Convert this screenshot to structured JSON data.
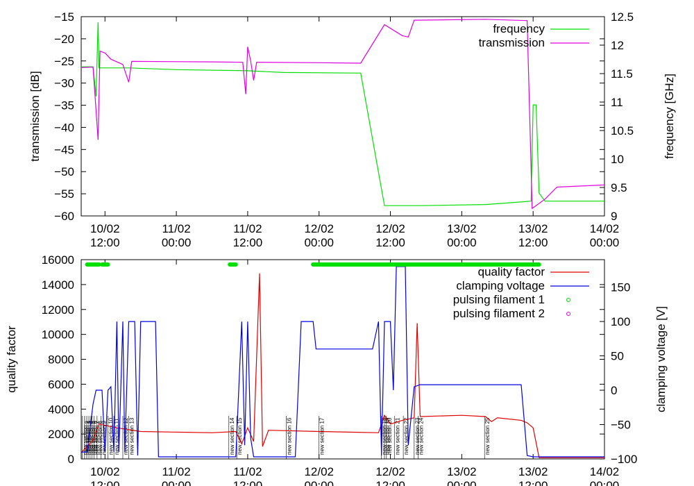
{
  "chart_data": [
    {
      "type": "line",
      "x_ticks": [
        {
          "date": "10/02",
          "time": "12:00"
        },
        {
          "date": "11/02",
          "time": "00:00"
        },
        {
          "date": "11/02",
          "time": "12:00"
        },
        {
          "date": "12/02",
          "time": "00:00"
        },
        {
          "date": "12/02",
          "time": "12:00"
        },
        {
          "date": "13/02",
          "time": "00:00"
        },
        {
          "date": "13/02",
          "time": "12:00"
        },
        {
          "date": "14/02",
          "time": "00:00"
        }
      ],
      "xlim": [
        "2013-02-10 08:00",
        "2013-02-14 00:00"
      ],
      "ylabel": "transmission [dB]",
      "ylim": [
        -60,
        -15
      ],
      "y_ticks": [
        -60,
        -55,
        -50,
        -45,
        -40,
        -35,
        -30,
        -25,
        -20,
        -15
      ],
      "y2label": "frequency [GHz]",
      "y2lim": [
        9,
        12.5
      ],
      "y2_ticks": [
        9,
        9.5,
        10,
        10.5,
        11,
        11.5,
        12,
        12.5
      ],
      "legend_position": "top-right",
      "colors": {
        "frequency": "#00e000",
        "transmission": "#e000e0"
      },
      "series": [
        {
          "name": "frequency",
          "axis": "right",
          "points": [
            [
              "2013-02-10 08:00",
              11.62
            ],
            [
              "2013-02-10 10:00",
              11.62
            ],
            [
              "2013-02-10 10:30",
              11.1
            ],
            [
              "2013-02-10 10:50",
              12.4
            ],
            [
              "2013-02-10 11:00",
              11.6
            ],
            [
              "2013-02-10 16:00",
              11.6
            ],
            [
              "2013-02-11 00:00",
              11.57
            ],
            [
              "2013-02-11 12:00",
              11.55
            ],
            [
              "2013-02-11 18:00",
              11.52
            ],
            [
              "2013-02-12 06:00",
              11.51
            ],
            [
              "2013-02-12 07:00",
              11.51
            ],
            [
              "2013-02-12 11:00",
              9.18
            ],
            [
              "2013-02-12 17:00",
              9.18
            ],
            [
              "2013-02-13 04:00",
              9.2
            ],
            [
              "2013-02-13 08:00",
              9.23
            ],
            [
              "2013-02-13 11:40",
              9.26
            ],
            [
              "2013-02-13 12:00",
              10.95
            ],
            [
              "2013-02-13 12:30",
              10.95
            ],
            [
              "2013-02-13 13:00",
              9.4
            ],
            [
              "2013-02-13 14:00",
              9.26
            ],
            [
              "2013-02-14 00:00",
              9.26
            ]
          ]
        },
        {
          "name": "transmission",
          "axis": "left",
          "points": [
            [
              "2013-02-10 08:00",
              -26.5
            ],
            [
              "2013-02-10 10:00",
              -26.4
            ],
            [
              "2013-02-10 10:50",
              -42.8
            ],
            [
              "2013-02-10 11:10",
              -22.8
            ],
            [
              "2013-02-10 12:00",
              -23.2
            ],
            [
              "2013-02-10 13:00",
              -24.6
            ],
            [
              "2013-02-10 15:00",
              -25.8
            ],
            [
              "2013-02-10 16:00",
              -29.8
            ],
            [
              "2013-02-10 16:30",
              -25.1
            ],
            [
              "2013-02-11 06:00",
              -25.2
            ],
            [
              "2013-02-11 11:10",
              -25.3
            ],
            [
              "2013-02-11 11:40",
              -32.5
            ],
            [
              "2013-02-11 12:00",
              -21.8
            ],
            [
              "2013-02-11 12:30",
              -25.0
            ],
            [
              "2013-02-11 13:00",
              -29.4
            ],
            [
              "2013-02-11 13:30",
              -25.3
            ],
            [
              "2013-02-12 00:00",
              -25.4
            ],
            [
              "2013-02-12 07:00",
              -25.5
            ],
            [
              "2013-02-12 11:00",
              -16.8
            ],
            [
              "2013-02-12 14:00",
              -19.3
            ],
            [
              "2013-02-12 15:00",
              -19.6
            ],
            [
              "2013-02-12 16:00",
              -15.8
            ],
            [
              "2013-02-13 04:00",
              -15.6
            ],
            [
              "2013-02-13 11:00",
              -15.9
            ],
            [
              "2013-02-13 11:50",
              -58.3
            ],
            [
              "2013-02-13 14:00",
              -56.2
            ],
            [
              "2013-02-13 16:00",
              -53.5
            ],
            [
              "2013-02-14 00:00",
              -53.0
            ]
          ]
        }
      ]
    },
    {
      "type": "line",
      "x_ticks": [
        {
          "date": "10/02",
          "time": "12:00"
        },
        {
          "date": "11/02",
          "time": "00:00"
        },
        {
          "date": "11/02",
          "time": "12:00"
        },
        {
          "date": "12/02",
          "time": "00:00"
        },
        {
          "date": "12/02",
          "time": "12:00"
        },
        {
          "date": "13/02",
          "time": "00:00"
        },
        {
          "date": "13/02",
          "time": "12:00"
        },
        {
          "date": "14/02",
          "time": "00:00"
        }
      ],
      "xlim": [
        "2013-02-10 08:00",
        "2013-02-14 00:00"
      ],
      "ylabel": "quality factor",
      "ylim": [
        0,
        16000
      ],
      "y_ticks": [
        0,
        2000,
        4000,
        6000,
        8000,
        10000,
        12000,
        14000,
        16000
      ],
      "y2label": "clamping voltage [V]",
      "y2lim": [
        -100,
        190
      ],
      "y2_ticks": [
        -100,
        -50,
        0,
        50,
        100,
        150
      ],
      "legend_position": "top-right",
      "colors": {
        "quality factor": "#e00000",
        "clamping voltage": "#0000e0",
        "pulsing filament 1": "#00e000",
        "pulsing filament 2": "#e000e0"
      },
      "series": [
        {
          "name": "quality factor",
          "axis": "left",
          "points": [
            [
              "2013-02-10 08:00",
              500
            ],
            [
              "2013-02-10 10:00",
              1500
            ],
            [
              "2013-02-10 11:00",
              2800
            ],
            [
              "2013-02-10 14:00",
              2500
            ],
            [
              "2013-02-10 18:00",
              2200
            ],
            [
              "2013-02-11 06:00",
              2100
            ],
            [
              "2013-02-11 10:00",
              2200
            ],
            [
              "2013-02-11 11:00",
              1200
            ],
            [
              "2013-02-11 12:00",
              2500
            ],
            [
              "2013-02-11 13:00",
              1400
            ],
            [
              "2013-02-11 14:00",
              14900
            ],
            [
              "2013-02-11 14:30",
              1000
            ],
            [
              "2013-02-11 15:30",
              2300
            ],
            [
              "2013-02-12 00:00",
              2200
            ],
            [
              "2013-02-12 10:00",
              2100
            ],
            [
              "2013-02-12 11:00",
              3500
            ],
            [
              "2013-02-12 12:00",
              2800
            ],
            [
              "2013-02-12 14:00",
              3100
            ],
            [
              "2013-02-12 16:00",
              3300
            ],
            [
              "2013-02-12 16:30",
              10900
            ],
            [
              "2013-02-12 17:00",
              3400
            ],
            [
              "2013-02-13 00:00",
              3500
            ],
            [
              "2013-02-13 04:00",
              3400
            ],
            [
              "2013-02-13 05:00",
              3000
            ],
            [
              "2013-02-13 06:00",
              3300
            ],
            [
              "2013-02-13 10:00",
              3100
            ],
            [
              "2013-02-13 11:00",
              2900
            ],
            [
              "2013-02-13 12:00",
              2500
            ],
            [
              "2013-02-13 13:00",
              100
            ],
            [
              "2013-02-14 00:00",
              100
            ]
          ]
        },
        {
          "name": "clamping voltage",
          "axis": "right",
          "points": [
            [
              "2013-02-10 08:00",
              -90
            ],
            [
              "2013-02-10 09:00",
              -90
            ],
            [
              "2013-02-10 10:00",
              -20
            ],
            [
              "2013-02-10 10:30",
              0
            ],
            [
              "2013-02-10 11:30",
              0
            ],
            [
              "2013-02-10 12:00",
              -90
            ],
            [
              "2013-02-10 12:30",
              0
            ],
            [
              "2013-02-10 13:00",
              5
            ],
            [
              "2013-02-10 13:30",
              -90
            ],
            [
              "2013-02-10 14:00",
              100
            ],
            [
              "2013-02-10 14:20",
              -90
            ],
            [
              "2013-02-10 15:00",
              100
            ],
            [
              "2013-02-10 15:20",
              -90
            ],
            [
              "2013-02-10 16:00",
              100
            ],
            [
              "2013-02-10 17:00",
              100
            ],
            [
              "2013-02-10 17:30",
              -95
            ],
            [
              "2013-02-10 18:00",
              100
            ],
            [
              "2013-02-10 20:30",
              100
            ],
            [
              "2013-02-10 21:00",
              -97
            ],
            [
              "2013-02-11 10:00",
              -97
            ],
            [
              "2013-02-11 11:00",
              100
            ],
            [
              "2013-02-11 11:30",
              -80
            ],
            [
              "2013-02-11 12:00",
              100
            ],
            [
              "2013-02-11 12:30",
              -70
            ],
            [
              "2013-02-11 13:00",
              -97
            ],
            [
              "2013-02-11 20:00",
              -97
            ],
            [
              "2013-02-11 21:00",
              100
            ],
            [
              "2013-02-11 23:00",
              100
            ],
            [
              "2013-02-11 23:30",
              60
            ],
            [
              "2013-02-12 09:00",
              60
            ],
            [
              "2013-02-12 10:00",
              100
            ],
            [
              "2013-02-12 10:30",
              -95
            ],
            [
              "2013-02-12 11:00",
              100
            ],
            [
              "2013-02-12 12:00",
              100
            ],
            [
              "2013-02-12 12:30",
              0
            ],
            [
              "2013-02-12 13:00",
              180
            ],
            [
              "2013-02-12 14:30",
              180
            ],
            [
              "2013-02-12 15:00",
              -80
            ],
            [
              "2013-02-12 16:00",
              5
            ],
            [
              "2013-02-12 17:00",
              8
            ],
            [
              "2013-02-13 10:00",
              8
            ],
            [
              "2013-02-13 11:00",
              -95
            ],
            [
              "2013-02-13 12:00",
              -97
            ],
            [
              "2013-02-14 00:00",
              -97
            ]
          ]
        },
        {
          "name": "pulsing filament 1",
          "style": "points",
          "intervals": [
            [
              "2013-02-10 09:00",
              "2013-02-10 11:00"
            ],
            [
              "2013-02-10 11:30",
              "2013-02-10 12:30"
            ],
            [
              "2013-02-11 09:00",
              "2013-02-11 10:00"
            ],
            [
              "2013-02-11 23:00",
              "2013-02-13 13:00"
            ]
          ]
        },
        {
          "name": "pulsing filament 2",
          "style": "points",
          "intervals": []
        }
      ],
      "annotations": [
        {
          "time": "2013-02-10 08:10",
          "text": "new section"
        },
        {
          "time": "2013-02-10 08:30",
          "text": "new section 2"
        },
        {
          "time": "2013-02-10 08:50",
          "text": "new section 3"
        },
        {
          "time": "2013-02-10 09:10",
          "text": "new section 4"
        },
        {
          "time": "2013-02-10 09:30",
          "text": "new section 5"
        },
        {
          "time": "2013-02-10 09:50",
          "text": "new section 6"
        },
        {
          "time": "2013-02-10 10:10",
          "text": "new section 7"
        },
        {
          "time": "2013-02-10 10:40",
          "text": "new section 8"
        },
        {
          "time": "2013-02-10 11:20",
          "text": "new section 9"
        },
        {
          "time": "2013-02-10 12:30",
          "text": "new section 10"
        },
        {
          "time": "2013-02-10 13:30",
          "text": "new section 11"
        },
        {
          "time": "2013-02-10 15:00",
          "text": "new section 12"
        },
        {
          "time": "2013-02-10 16:00",
          "text": "new section 13"
        },
        {
          "time": "2013-02-11 08:50",
          "text": "new section 14"
        },
        {
          "time": "2013-02-11 10:10",
          "text": "new section 15"
        },
        {
          "time": "2013-02-11 18:30",
          "text": "new section 16"
        },
        {
          "time": "2013-02-12 00:00",
          "text": "new section 17"
        },
        {
          "time": "2013-02-12 10:30",
          "text": "new section 18"
        },
        {
          "time": "2013-02-12 11:00",
          "text": "new section 19"
        },
        {
          "time": "2013-02-12 11:20",
          "text": "new section 20"
        },
        {
          "time": "2013-02-12 12:40",
          "text": "new section 21"
        },
        {
          "time": "2013-02-12 14:10",
          "text": "new section 22"
        },
        {
          "time": "2013-02-12 16:00",
          "text": "new section 23"
        },
        {
          "time": "2013-02-12 16:40",
          "text": "new section 24"
        },
        {
          "time": "2013-02-13 03:50",
          "text": "new section 25"
        }
      ]
    }
  ]
}
